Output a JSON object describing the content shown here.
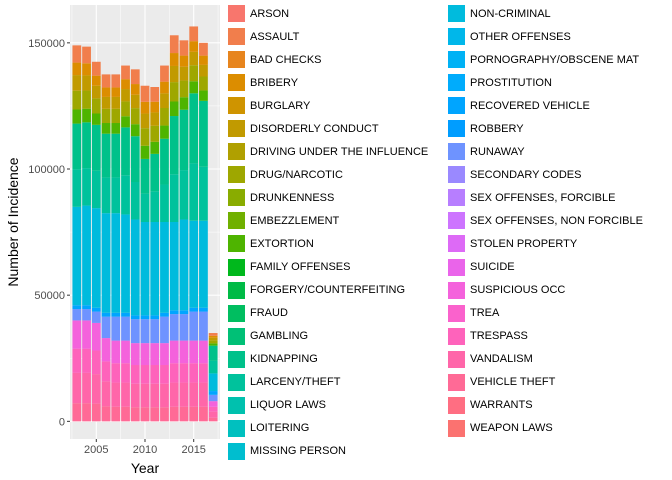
{
  "chart_data": {
    "type": "bar",
    "stacked": true,
    "xlabel": "Year",
    "ylabel": "Number of Incidence",
    "x": [
      2003,
      2004,
      2005,
      2006,
      2007,
      2008,
      2009,
      2010,
      2011,
      2012,
      2013,
      2014,
      2015,
      2016,
      2017
    ],
    "xticks": [
      2005,
      2010,
      2015
    ],
    "yticks": [
      0,
      50000,
      100000,
      150000
    ],
    "ytick_labels": [
      "0",
      "50000",
      "100000",
      "150000"
    ],
    "xlim": [
      2002.3,
      2017.7
    ],
    "ylim": [
      -7000,
      165000
    ],
    "grid": true,
    "legend_position": "right",
    "totals": [
      149000,
      148500,
      142500,
      137500,
      137500,
      141000,
      139500,
      133000,
      132500,
      141000,
      153000,
      151000,
      156500,
      150000,
      35000
    ],
    "band_tops": {
      "larceny_theft": [
        118000,
        118500,
        117500,
        114000,
        114000,
        116500,
        113000,
        104000,
        106000,
        112000,
        121000,
        123500,
        130000,
        127000,
        30000
      ],
      "drug_narcotic": [
        85000,
        85500,
        84500,
        82500,
        82500,
        82000,
        80000,
        79000,
        79000,
        79000,
        79000,
        80000,
        79500,
        79500,
        19000
      ],
      "non_criminal": [
        46000,
        46000,
        45000,
        43000,
        43000,
        43000,
        42000,
        42000,
        42000,
        43000,
        44000,
        44000,
        45000,
        45000,
        12000
      ],
      "vandalism": [
        40000,
        40000,
        39000,
        33000,
        32000,
        32000,
        31000,
        31000,
        31000,
        31000,
        32000,
        32000,
        32000,
        32000,
        8000
      ]
    },
    "series": [
      {
        "name": "ARSON"
      },
      {
        "name": "ASSAULT"
      },
      {
        "name": "BAD CHECKS"
      },
      {
        "name": "BRIBERY"
      },
      {
        "name": "BURGLARY"
      },
      {
        "name": "DISORDERLY CONDUCT"
      },
      {
        "name": "DRIVING UNDER THE INFLUENCE"
      },
      {
        "name": "DRUG/NARCOTIC"
      },
      {
        "name": "DRUNKENNESS"
      },
      {
        "name": "EMBEZZLEMENT"
      },
      {
        "name": "EXTORTION"
      },
      {
        "name": "FAMILY OFFENSES"
      },
      {
        "name": "FORGERY/COUNTERFEITING"
      },
      {
        "name": "FRAUD"
      },
      {
        "name": "GAMBLING"
      },
      {
        "name": "KIDNAPPING"
      },
      {
        "name": "LARCENY/THEFT"
      },
      {
        "name": "LIQUOR LAWS"
      },
      {
        "name": "LOITERING"
      },
      {
        "name": "MISSING PERSON"
      },
      {
        "name": "NON-CRIMINAL"
      },
      {
        "name": "OTHER OFFENSES"
      },
      {
        "name": "PORNOGRAPHY/OBSCENE MAT"
      },
      {
        "name": "PROSTITUTION"
      },
      {
        "name": "RECOVERED VEHICLE"
      },
      {
        "name": "ROBBERY"
      },
      {
        "name": "RUNAWAY"
      },
      {
        "name": "SECONDARY CODES"
      },
      {
        "name": "SEX OFFENSES, FORCIBLE"
      },
      {
        "name": "SEX OFFENSES, NON FORCIBLE"
      },
      {
        "name": "STOLEN PROPERTY"
      },
      {
        "name": "SUICIDE"
      },
      {
        "name": "SUSPICIOUS OCC"
      },
      {
        "name": "TREA"
      },
      {
        "name": "TRESPASS"
      },
      {
        "name": "VANDALISM"
      },
      {
        "name": "VEHICLE THEFT"
      },
      {
        "name": "WARRANTS"
      },
      {
        "name": "WEAPON LAWS"
      }
    ],
    "colors": [
      "#F8766D",
      "#F17E4C",
      "#E7851E",
      "#DC8D00",
      "#CF9400",
      "#C19A00",
      "#B0A000",
      "#9EA700",
      "#89AC00",
      "#70B000",
      "#4EB400",
      "#00B81C",
      "#00BB46",
      "#00BE60",
      "#00C076",
      "#00C18A",
      "#00C29C",
      "#00C1AE",
      "#00C0BF",
      "#00BECF",
      "#00BBDD",
      "#00B7EA",
      "#00B2F5",
      "#00ACFC",
      "#00A5FF",
      "#009DFF",
      "#6E93FF",
      "#9A89FF",
      "#B77EFF",
      "#CD74FF",
      "#DD6AF6",
      "#EA64EA",
      "#F462DC",
      "#FA62CC",
      "#FE63BB",
      "#FF66A9",
      "#FF6A96",
      "#FF6E82",
      "#FB7270"
    ]
  }
}
